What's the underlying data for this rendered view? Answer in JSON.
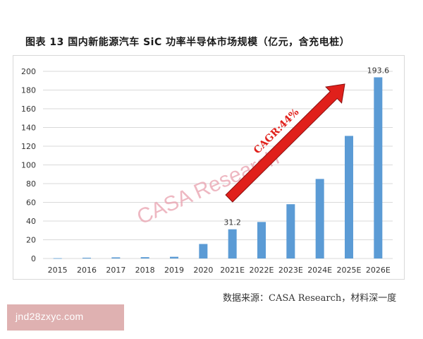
{
  "title": "图表 13 国内新能源汽车 SiC 功率半导体市场规模（亿元，含充电桩）",
  "source": "数据来源：CASA Research，材料深一度",
  "watermark": "CASA Research",
  "overlay_text": "jnd28zxyc.com",
  "annotation": "CAGR:44%",
  "colors": {
    "bar": "#5b9bd5",
    "arrow": "#e0201b",
    "watermark": "#e8a0ad",
    "grid": "#d9d9d9"
  },
  "chart_data": {
    "type": "bar",
    "categories": [
      "2015",
      "2016",
      "2017",
      "2018",
      "2019",
      "2020",
      "2021E",
      "2022E",
      "2023E",
      "2024E",
      "2025E",
      "2026E"
    ],
    "values": [
      0.3,
      0.8,
      1.2,
      1.4,
      1.8,
      15.5,
      31.2,
      39,
      58,
      85,
      131,
      193.6
    ],
    "data_labels": {
      "6": "31.2",
      "11": "193.6"
    },
    "yticks": [
      "0",
      "20",
      "40",
      "60",
      "80",
      "100",
      "120",
      "140",
      "160",
      "180",
      "200"
    ],
    "ylim": [
      0,
      200
    ],
    "grid": true,
    "legend": "none"
  }
}
